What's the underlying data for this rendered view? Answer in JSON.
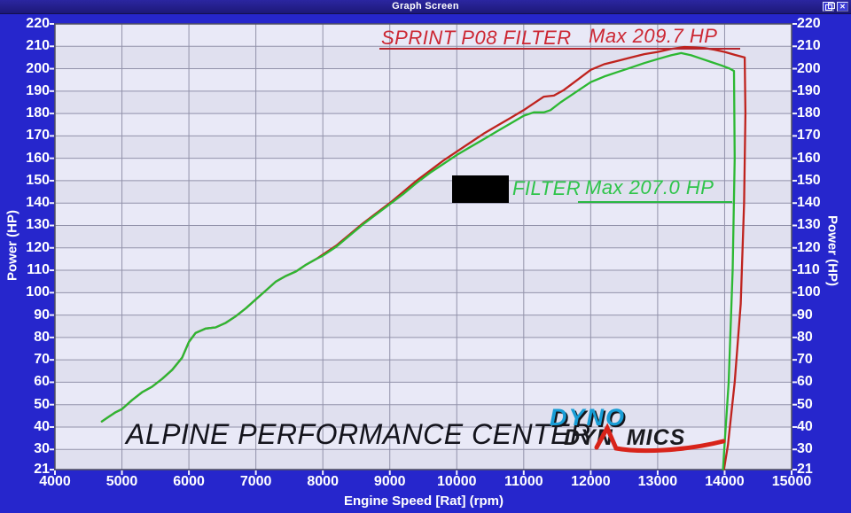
{
  "window": {
    "title": "Graph Screen",
    "close_glyph": "✕"
  },
  "chart_data": {
    "type": "line",
    "title": "",
    "xlabel": "Engine Speed [Rat] (rpm)",
    "ylabel_left": "Power (HP)",
    "ylabel_right": "Power (HP)",
    "xlim": [
      4000,
      15000
    ],
    "ylim": [
      21,
      220
    ],
    "x_ticks": [
      4000,
      5000,
      6000,
      7000,
      8000,
      9000,
      10000,
      11000,
      12000,
      13000,
      14000,
      15000
    ],
    "y_ticks": [
      21,
      30,
      40,
      50,
      60,
      70,
      80,
      90,
      100,
      110,
      120,
      130,
      140,
      150,
      160,
      170,
      180,
      190,
      200,
      210,
      220
    ],
    "grid": true,
    "legend_position": "in-plot annotations",
    "plot_bg": "#e9e9f7",
    "band_alt_bg": "#e0e0ef",
    "grid_color": "#9292aa",
    "series": [
      {
        "name": "SPRINT P08 FILTER",
        "max_label": "Max 209.7 HP",
        "max_hp": 209.7,
        "max_rpm": 13400,
        "color": "#bf231e",
        "points": [
          [
            4700,
            42.5
          ],
          [
            4800,
            44.5
          ],
          [
            4900,
            46.5
          ],
          [
            5000,
            48
          ],
          [
            5150,
            52
          ],
          [
            5300,
            55.5
          ],
          [
            5450,
            58
          ],
          [
            5600,
            61.5
          ],
          [
            5750,
            65.5
          ],
          [
            5900,
            71
          ],
          [
            6000,
            78
          ],
          [
            6100,
            82
          ],
          [
            6250,
            84
          ],
          [
            6400,
            84.5
          ],
          [
            6550,
            86.5
          ],
          [
            6700,
            89.5
          ],
          [
            6850,
            93
          ],
          [
            7000,
            97
          ],
          [
            7150,
            101
          ],
          [
            7300,
            105
          ],
          [
            7450,
            107.5
          ],
          [
            7600,
            109.5
          ],
          [
            7750,
            112.5
          ],
          [
            7900,
            115
          ],
          [
            8000,
            117
          ],
          [
            8200,
            121
          ],
          [
            8400,
            126
          ],
          [
            8600,
            131
          ],
          [
            8800,
            135.5
          ],
          [
            9000,
            140
          ],
          [
            9200,
            145
          ],
          [
            9400,
            150
          ],
          [
            9600,
            154.5
          ],
          [
            9800,
            159
          ],
          [
            10000,
            163
          ],
          [
            10200,
            167
          ],
          [
            10400,
            171
          ],
          [
            10600,
            174.5
          ],
          [
            10800,
            178
          ],
          [
            11000,
            181.5
          ],
          [
            11150,
            184.5
          ],
          [
            11300,
            187.5
          ],
          [
            11450,
            188
          ],
          [
            11600,
            190.5
          ],
          [
            11800,
            195
          ],
          [
            12000,
            199.5
          ],
          [
            12200,
            202
          ],
          [
            12400,
            203.5
          ],
          [
            12600,
            205
          ],
          [
            12800,
            206.5
          ],
          [
            13000,
            207.5
          ],
          [
            13200,
            208.8
          ],
          [
            13400,
            209.7
          ],
          [
            13550,
            209.5
          ],
          [
            13700,
            209.2
          ],
          [
            13850,
            208.5
          ],
          [
            14000,
            207.5
          ],
          [
            14150,
            206.2
          ],
          [
            14300,
            205
          ],
          [
            14310,
            180
          ],
          [
            14290,
            140
          ],
          [
            14240,
            95
          ],
          [
            14150,
            60
          ],
          [
            14050,
            32
          ],
          [
            13990,
            21
          ]
        ]
      },
      {
        "name": "FILTER",
        "name_prefix_redacted": true,
        "max_label": "Max 207.0 HP",
        "max_hp": 207.0,
        "max_rpm": 13350,
        "color": "#2cb832",
        "points": [
          [
            4700,
            42.5
          ],
          [
            4800,
            44.5
          ],
          [
            4900,
            46.5
          ],
          [
            5000,
            48
          ],
          [
            5150,
            52
          ],
          [
            5300,
            55.5
          ],
          [
            5450,
            58
          ],
          [
            5600,
            61.5
          ],
          [
            5750,
            65.5
          ],
          [
            5900,
            71
          ],
          [
            6000,
            78
          ],
          [
            6100,
            82
          ],
          [
            6250,
            84
          ],
          [
            6400,
            84.5
          ],
          [
            6550,
            86.5
          ],
          [
            6700,
            89.5
          ],
          [
            6850,
            93
          ],
          [
            7000,
            97
          ],
          [
            7150,
            101
          ],
          [
            7300,
            105
          ],
          [
            7450,
            107.5
          ],
          [
            7600,
            109.5
          ],
          [
            7750,
            112.5
          ],
          [
            7900,
            115
          ],
          [
            8000,
            116.5
          ],
          [
            8200,
            120.5
          ],
          [
            8400,
            125.5
          ],
          [
            8600,
            130.5
          ],
          [
            8800,
            135
          ],
          [
            9000,
            139.5
          ],
          [
            9200,
            144
          ],
          [
            9400,
            149
          ],
          [
            9600,
            153.5
          ],
          [
            9800,
            157.5
          ],
          [
            10000,
            161.5
          ],
          [
            10200,
            165
          ],
          [
            10400,
            168.5
          ],
          [
            10600,
            172
          ],
          [
            10800,
            175.5
          ],
          [
            11000,
            179
          ],
          [
            11150,
            180.5
          ],
          [
            11300,
            180.5
          ],
          [
            11400,
            181.5
          ],
          [
            11550,
            185
          ],
          [
            11700,
            188
          ],
          [
            11850,
            191
          ],
          [
            12000,
            194
          ],
          [
            12200,
            196.5
          ],
          [
            12400,
            198.5
          ],
          [
            12600,
            200.5
          ],
          [
            12800,
            202.5
          ],
          [
            13000,
            204.3
          ],
          [
            13200,
            206
          ],
          [
            13350,
            207
          ],
          [
            13500,
            206
          ],
          [
            13650,
            204.5
          ],
          [
            13800,
            203
          ],
          [
            13950,
            201.5
          ],
          [
            14080,
            200
          ],
          [
            14140,
            199
          ],
          [
            14150,
            160
          ],
          [
            14120,
            110
          ],
          [
            14060,
            60
          ],
          [
            13990,
            28
          ],
          [
            13975,
            21
          ]
        ]
      }
    ]
  },
  "annotations": {
    "red_series_label": "SPRINT P08 FILTER",
    "red_max_label": "Max 209.7 HP",
    "green_series_label": "FILTER",
    "green_max_label": "Max 207.0 HP",
    "watermark": "ALPINE PERFORMANCE CENTER",
    "logo": {
      "top": "DYNO",
      "bottom_left": "DYN",
      "bottom_right": "MICS"
    }
  },
  "colors": {
    "window_blue": "#2626cc",
    "titlebar_navy": "#201b85",
    "red_text": "#cc2733",
    "green_text": "#2ec44a",
    "watermark_text": "#14141c",
    "logo_blue": "#189dd6",
    "logo_dark": "#1a1a1f",
    "logo_red": "#d8231a"
  }
}
